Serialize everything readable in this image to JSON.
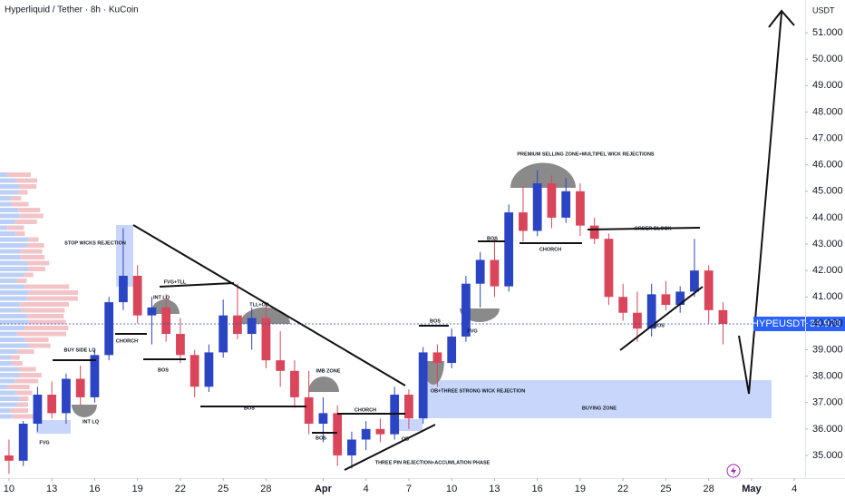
{
  "chart_data": {
    "type": "candlestick",
    "title": "Hyperliquid / Tether · 8h · KuCoin",
    "y_axis_label": "USDT",
    "symbol": "HYPEUSDT",
    "last_price": 39.978,
    "up_color": "#2b44c4",
    "down_color": "#d9455b",
    "xlim": [
      -0.63,
      55.75
    ],
    "xticks": [
      {
        "value": 0,
        "label": "10"
      },
      {
        "value": 3,
        "label": "13"
      },
      {
        "value": 6,
        "label": "16"
      },
      {
        "value": 9,
        "label": "19"
      },
      {
        "value": 12,
        "label": "22"
      },
      {
        "value": 15,
        "label": "25"
      },
      {
        "value": 18,
        "label": "28"
      },
      {
        "value": 22,
        "label": "Apr"
      },
      {
        "value": 25,
        "label": "4"
      },
      {
        "value": 28,
        "label": "7"
      },
      {
        "value": 31,
        "label": "10"
      },
      {
        "value": 34,
        "label": "13"
      },
      {
        "value": 37,
        "label": "16"
      },
      {
        "value": 40,
        "label": "19"
      },
      {
        "value": 43,
        "label": "22"
      },
      {
        "value": 46,
        "label": "25"
      },
      {
        "value": 49,
        "label": "28"
      },
      {
        "value": 52,
        "label": "May"
      },
      {
        "value": 55,
        "label": "4"
      }
    ],
    "ylim": [
      34.14,
      52.24
    ],
    "yticks": [
      {
        "value": 35,
        "label": "35.000"
      },
      {
        "value": 36,
        "label": "36.000"
      },
      {
        "value": 37,
        "label": "37.000"
      },
      {
        "value": 38,
        "label": "38.000"
      },
      {
        "value": 39,
        "label": "39.000"
      },
      {
        "value": 40,
        "label": "40.000"
      },
      {
        "value": 41,
        "label": "41.000"
      },
      {
        "value": 42,
        "label": "42.000"
      },
      {
        "value": 43,
        "label": "43.000"
      },
      {
        "value": 44,
        "label": "44.000"
      },
      {
        "value": 45,
        "label": "45.000"
      },
      {
        "value": 46,
        "label": "46.000"
      },
      {
        "value": 47,
        "label": "47.000"
      },
      {
        "value": 48,
        "label": "48.000"
      },
      {
        "value": 49,
        "label": "49.000"
      },
      {
        "value": 50,
        "label": "50.000"
      },
      {
        "value": 51,
        "label": "51.000"
      }
    ],
    "x": [
      0,
      1,
      2,
      3,
      4,
      5,
      6,
      7,
      8,
      9,
      10,
      11,
      12,
      13,
      14,
      15,
      16,
      17,
      18,
      19,
      20,
      21,
      22,
      23,
      24,
      25,
      26,
      27,
      28,
      29,
      30,
      31,
      32,
      33,
      34,
      35,
      36,
      37,
      38,
      39,
      40,
      41,
      42,
      43,
      44,
      45,
      46,
      47,
      48,
      49,
      50
    ],
    "open": [
      35.0,
      34.8,
      36.2,
      37.3,
      36.6,
      37.9,
      37.2,
      38.8,
      40.8,
      41.8,
      40.3,
      40.6,
      39.6,
      38.8,
      37.6,
      38.9,
      40.3,
      39.6,
      40.2,
      38.6,
      38.2,
      37.2,
      36.2,
      36.6,
      35.0,
      35.6,
      36.0,
      35.8,
      37.3,
      36.4,
      38.9,
      38.5,
      39.5,
      41.5,
      42.4,
      41.4,
      44.2,
      43.5,
      45.3,
      44.0,
      45.0,
      43.7,
      43.2,
      41.0,
      40.4,
      39.8,
      41.1,
      40.7,
      41.2,
      42.0,
      40.5
    ],
    "high": [
      35.6,
      36.3,
      37.6,
      37.8,
      38.1,
      38.4,
      39.0,
      41.0,
      43.6,
      42.2,
      41.0,
      41.1,
      40.2,
      39.0,
      39.2,
      40.9,
      41.5,
      40.6,
      40.7,
      39.7,
      38.6,
      38.2,
      37.2,
      36.9,
      35.9,
      36.3,
      36.4,
      37.6,
      37.5,
      39.1,
      39.2,
      39.8,
      41.8,
      42.7,
      43.2,
      44.5,
      45.2,
      45.8,
      45.6,
      45.5,
      45.3,
      44.0,
      43.4,
      41.5,
      41.2,
      41.5,
      41.6,
      41.4,
      43.2,
      42.2,
      40.8
    ],
    "low": [
      34.3,
      34.6,
      35.9,
      36.4,
      36.2,
      36.9,
      37.0,
      38.6,
      40.5,
      40.0,
      39.2,
      39.3,
      38.5,
      37.2,
      37.4,
      38.7,
      39.4,
      39.0,
      38.3,
      37.6,
      36.8,
      35.8,
      35.5,
      34.6,
      34.5,
      35.2,
      35.5,
      35.6,
      36.0,
      36.2,
      37.6,
      38.3,
      39.3,
      40.6,
      41.0,
      41.2,
      43.1,
      43.3,
      43.6,
      43.8,
      43.3,
      43.0,
      40.7,
      40.1,
      39.3,
      39.5,
      40.5,
      40.4,
      41.0,
      40.0,
      39.2
    ],
    "close": [
      34.8,
      36.2,
      37.3,
      36.6,
      37.9,
      37.2,
      38.8,
      40.8,
      41.8,
      40.3,
      40.6,
      39.6,
      38.8,
      37.6,
      38.9,
      40.3,
      39.6,
      40.2,
      38.6,
      38.2,
      37.2,
      36.2,
      36.6,
      35.0,
      35.6,
      36.0,
      35.8,
      37.3,
      36.4,
      38.9,
      38.5,
      39.5,
      41.5,
      42.4,
      41.4,
      44.2,
      43.5,
      45.3,
      44.0,
      45.0,
      43.7,
      43.2,
      41.0,
      40.4,
      39.8,
      41.1,
      40.7,
      41.2,
      42.0,
      40.5,
      39.978
    ],
    "annotations": [
      "STOP WICKS REJECTION",
      "FVG+TLL",
      "INT LQ",
      "CHORCH",
      "BOS",
      "BUY SIDE LQ",
      "INT LQ",
      "FVG",
      "TLL+OB",
      "IMB ZONE",
      "BOS",
      "CHORCH",
      "BOS",
      "OB",
      "THREE PIN REJECTION+ACCUMLATION PHASE",
      "OB+THREE STRONG WICK REJECTION",
      "BUYING ZONE",
      "BOS",
      "FVG",
      "BOS",
      "CHORCH",
      "PREMIUM SELLING ZONE+MULTIPEL WICK REJECTIONS",
      "ORDER BLOCK",
      "BOS"
    ]
  }
}
